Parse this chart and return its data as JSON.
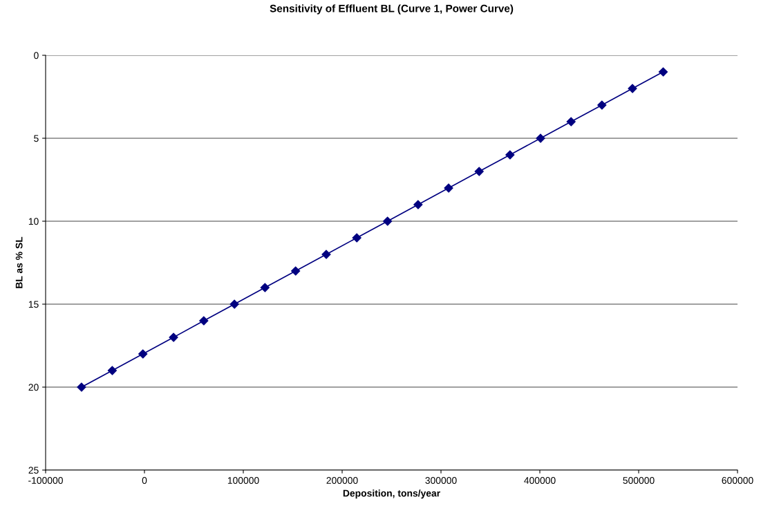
{
  "chart_data": {
    "type": "line",
    "title": "Sensitivity of Effluent BL (Curve 1, Power Curve)",
    "xlabel": "Deposition, tons/year",
    "ylabel": "BL as % SL",
    "x": [
      -63700,
      -32600,
      -1600,
      29400,
      60000,
      91000,
      121900,
      152900,
      183900,
      214800,
      245900,
      276800,
      307700,
      338600,
      369800,
      400700,
      431600,
      462800,
      493700,
      524800
    ],
    "series": [
      {
        "color": "#000080",
        "values": [
          20,
          19,
          18,
          17,
          16,
          15,
          14,
          13,
          12,
          11,
          10,
          9,
          8,
          7,
          6,
          5,
          4,
          3,
          2,
          1
        ]
      }
    ],
    "xlim": [
      -100000,
      600000
    ],
    "xticks": [
      -100000,
      0,
      100000,
      200000,
      300000,
      400000,
      500000,
      600000
    ],
    "ylim": [
      25,
      0
    ],
    "yticks": [
      0,
      5,
      10,
      15,
      20,
      25
    ],
    "grid": "y",
    "marker": "diamond",
    "line_style": "solid",
    "legend": false
  }
}
